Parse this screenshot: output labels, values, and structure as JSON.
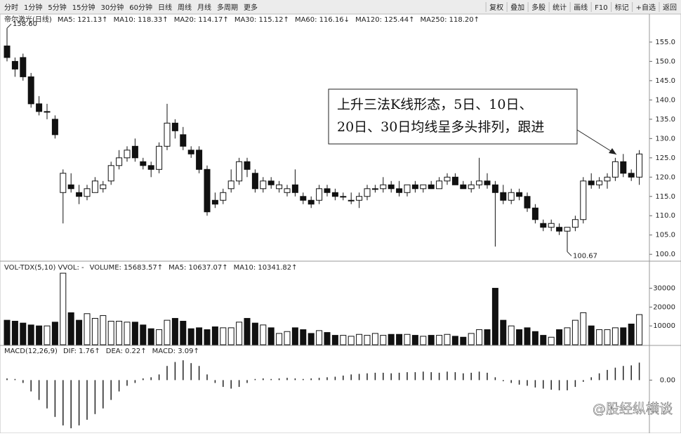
{
  "toolbar": {
    "left": [
      "分时",
      "1分钟",
      "5分钟",
      "15分钟",
      "30分钟",
      "60分钟",
      "日线",
      "周线",
      "月线",
      "多周期",
      "更多"
    ],
    "right": [
      "复权",
      "叠加",
      "多股",
      "统计",
      "画线",
      "F10",
      "标记",
      "+自选",
      "返回"
    ]
  },
  "chart_data": [
    {
      "type": "candlestick",
      "title": "帝尔激光(日线)",
      "legend": [
        {
          "text": "MA5: 121.13↑",
          "color": "#333"
        },
        {
          "text": "MA10: 118.33↑",
          "color": "#333"
        },
        {
          "text": "MA20: 114.17↑",
          "color": "#aaa"
        },
        {
          "text": "MA30: 115.12↑",
          "color": "#333"
        },
        {
          "text": "MA60: 116.16↓",
          "color": "#333"
        },
        {
          "text": "MA120: 125.44↑",
          "color": "#333"
        },
        {
          "text": "MA250: 118.20↑",
          "color": "#333"
        }
      ],
      "candles": [
        [
          154,
          158.6,
          150,
          151
        ],
        [
          150,
          151,
          146,
          148
        ],
        [
          151,
          152,
          145,
          146
        ],
        [
          146,
          147,
          138,
          139
        ],
        [
          139,
          141,
          136,
          137
        ],
        [
          137,
          139,
          135,
          137
        ],
        [
          135,
          136,
          130,
          131
        ],
        [
          116,
          122,
          108,
          121
        ],
        [
          118,
          121,
          116,
          117
        ],
        [
          116,
          118,
          113,
          115
        ],
        [
          115,
          118,
          114,
          117
        ],
        [
          116,
          120,
          116,
          119
        ],
        [
          117,
          119,
          116,
          118
        ],
        [
          119,
          124,
          118,
          123
        ],
        [
          123,
          127,
          122,
          125
        ],
        [
          125,
          128,
          124,
          127
        ],
        [
          128,
          130,
          124,
          125
        ],
        [
          124,
          125,
          122,
          123
        ],
        [
          123,
          124,
          120,
          122
        ],
        [
          122,
          129,
          121,
          128
        ],
        [
          128,
          139,
          127,
          134
        ],
        [
          134,
          135,
          130,
          132
        ],
        [
          131,
          133,
          127,
          128
        ],
        [
          127,
          128,
          125,
          126
        ],
        [
          127,
          128,
          121,
          122
        ],
        [
          122,
          123,
          110,
          111
        ],
        [
          114,
          116,
          112,
          113
        ],
        [
          114,
          117,
          113,
          116
        ],
        [
          117,
          122,
          116,
          119
        ],
        [
          119,
          125,
          118,
          124
        ],
        [
          124,
          125,
          120,
          122
        ],
        [
          121,
          122,
          116,
          117
        ],
        [
          117,
          120,
          116,
          119
        ],
        [
          119,
          120,
          117,
          118
        ],
        [
          117,
          119,
          116,
          118
        ],
        [
          116,
          118,
          115,
          117
        ],
        [
          118,
          122,
          115,
          116
        ],
        [
          115,
          116,
          113,
          114
        ],
        [
          114,
          115,
          112,
          113
        ],
        [
          114,
          118,
          113,
          117
        ],
        [
          117,
          118,
          115,
          116
        ],
        [
          116,
          117,
          114,
          115
        ],
        [
          115,
          116,
          114,
          115
        ],
        [
          114,
          116,
          113,
          114
        ],
        [
          114,
          116,
          112,
          115
        ],
        [
          115,
          118,
          114,
          117
        ],
        [
          117,
          118,
          116,
          117
        ],
        [
          117,
          120,
          116,
          118
        ],
        [
          118,
          119,
          116,
          117
        ],
        [
          117,
          119,
          115,
          116
        ],
        [
          116,
          118,
          115,
          118
        ],
        [
          118,
          119,
          116,
          117
        ],
        [
          117,
          118,
          116,
          118
        ],
        [
          118,
          119,
          117,
          117
        ],
        [
          117,
          120,
          117,
          119
        ],
        [
          119,
          121,
          118,
          120
        ],
        [
          120,
          121,
          118,
          118
        ],
        [
          118,
          119,
          117,
          117
        ],
        [
          117,
          119,
          116,
          118
        ],
        [
          118,
          125,
          117,
          119
        ],
        [
          119,
          121,
          117,
          118
        ],
        [
          118,
          119,
          102,
          116
        ],
        [
          116,
          118,
          113,
          114
        ],
        [
          114,
          117,
          113,
          116
        ],
        [
          116,
          117,
          114,
          115
        ],
        [
          115,
          116,
          111,
          112
        ],
        [
          112,
          113,
          108,
          109
        ],
        [
          108,
          109,
          106,
          107
        ],
        [
          107,
          109,
          106,
          108
        ],
        [
          107,
          108,
          105,
          106
        ],
        [
          106,
          107,
          100.67,
          107
        ],
        [
          107,
          110,
          106,
          109
        ],
        [
          109,
          120,
          108,
          119
        ],
        [
          119,
          121,
          117,
          118
        ],
        [
          118,
          120,
          117,
          119
        ],
        [
          119,
          121,
          117,
          120
        ],
        [
          120,
          125,
          119,
          124
        ],
        [
          124,
          126,
          120,
          121
        ],
        [
          121,
          122,
          119,
          120
        ],
        [
          120,
          127,
          118,
          126
        ]
      ],
      "ylim": [
        98.4,
        161.9
      ],
      "yticks": [
        {
          "value": 100,
          "label": "100.0"
        },
        {
          "value": 105,
          "label": "105.0"
        },
        {
          "value": 110,
          "label": "110.0"
        },
        {
          "value": 115,
          "label": "115.0"
        },
        {
          "value": 120,
          "label": "120.0"
        },
        {
          "value": 125,
          "label": "125.0"
        },
        {
          "value": 130,
          "label": "130.0"
        },
        {
          "value": 135,
          "label": "135.0"
        },
        {
          "value": 140,
          "label": "140.0"
        },
        {
          "value": 145,
          "label": "145.0"
        },
        {
          "value": 150,
          "label": "150.0"
        },
        {
          "value": 155,
          "label": "155.0"
        }
      ],
      "annotations": [
        {
          "text": "158.60",
          "value": 158.6
        },
        {
          "text": "100.67",
          "value": 100.67
        }
      ],
      "callout": [
        "上升三法K线形态，5日、10日、",
        "20日、30日均线呈多头排列，跟进"
      ]
    },
    {
      "type": "bar",
      "title": "VOL-TDX(5,10) VVOL: -",
      "legend": [
        {
          "text": "VOLUME: 15683.57↑",
          "color": "#333"
        },
        {
          "text": "MA5: 10637.07↑",
          "color": "#333"
        },
        {
          "text": "MA10: 10341.82↑",
          "color": "#aaa"
        }
      ],
      "values": [
        13000,
        12500,
        11500,
        10500,
        10000,
        10000,
        12000,
        38000,
        17000,
        13000,
        16500,
        14000,
        15500,
        12500,
        12500,
        12000,
        12000,
        10500,
        8500,
        8000,
        13000,
        14000,
        12500,
        8500,
        9000,
        8000,
        9500,
        9000,
        9000,
        12000,
        14000,
        11500,
        10500,
        9000,
        6000,
        7000,
        9000,
        8000,
        6000,
        7500,
        6500,
        5000,
        5000,
        4500,
        5500,
        5000,
        6000,
        5000,
        5500,
        5500,
        5500,
        5000,
        4500,
        5000,
        5000,
        5500,
        4500,
        4000,
        6000,
        8000,
        8000,
        30000,
        13000,
        10000,
        8000,
        9000,
        7000,
        5000,
        4000,
        8000,
        9000,
        13000,
        17000,
        10000,
        8000,
        8000,
        9000,
        9000,
        11000,
        16000
      ],
      "ylim": [
        0,
        44000
      ],
      "yticks": [
        10000,
        20000,
        30000
      ]
    },
    {
      "type": "histogram-line",
      "title": "MACD(12,26,9)",
      "legend": [
        {
          "text": "DIF: 1.76↑",
          "color": "#333"
        },
        {
          "text": "DEA: 0.22↑",
          "color": "#333"
        },
        {
          "text": "MACD: 3.09↑",
          "color": "#aaa"
        }
      ],
      "values": [
        0.3,
        0.2,
        -0.5,
        -2,
        -3.5,
        -5,
        -6.5,
        -8,
        -8.5,
        -8,
        -7,
        -6,
        -5,
        -3.5,
        -2,
        -1,
        -0.5,
        0.3,
        0.5,
        1,
        2.5,
        3.2,
        3.5,
        3,
        2.5,
        1,
        -0.5,
        -1.2,
        -1.5,
        -1.2,
        -0.5,
        0.2,
        0.3,
        0.2,
        0.3,
        0.4,
        0.3,
        0.2,
        0.3,
        0.4,
        0.5,
        0.6,
        0.8,
        1,
        1.1,
        1.2,
        1.3,
        1.3,
        1.2,
        1.3,
        1.4,
        1.4,
        1.5,
        1.4,
        1.3,
        1.5,
        1.4,
        1.2,
        1.3,
        1.5,
        1.3,
        0.5,
        -0.2,
        -0.5,
        -0.8,
        -1,
        -1.3,
        -1.5,
        -1.7,
        -1.8,
        -1.8,
        -1.2,
        -0.3,
        0.5,
        1.2,
        1.8,
        2.2,
        2.5,
        2.6,
        3.09
      ],
      "ylim": [
        -9.25,
        6
      ],
      "yticks": [
        {
          "value": 0,
          "label": "0.00"
        }
      ]
    }
  ],
  "watermark": "@股经纵横谈"
}
